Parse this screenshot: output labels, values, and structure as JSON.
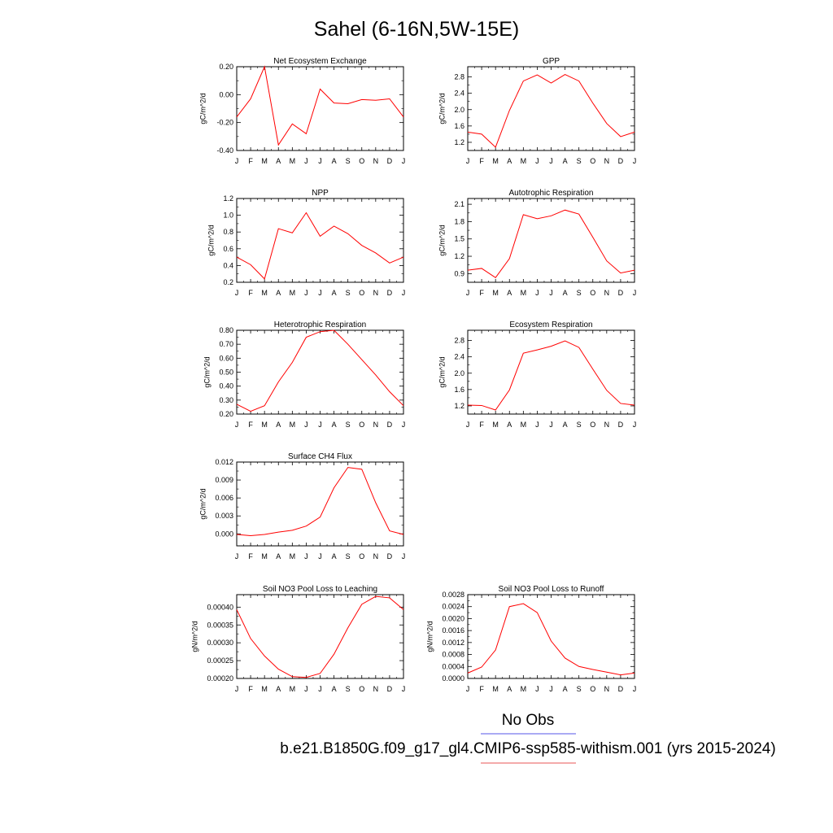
{
  "figure": {
    "title": "Sahel (6-16N,5W-15E)",
    "legend": {
      "entries": [
        {
          "label": "No Obs",
          "color": "#7777ee"
        },
        {
          "label": "b.e21.B1850G.f09_g17_gl4.CMIP6-ssp585-withism.001 (yrs 2015-2024)",
          "color": "#ee7777"
        }
      ]
    },
    "line_color": "#ff0000"
  },
  "chart_data": [
    {
      "type": "line",
      "title": "Net Ecosystem Exchange",
      "ylabel": "gC/m^2/d",
      "categories": [
        "J",
        "F",
        "M",
        "A",
        "M",
        "J",
        "J",
        "A",
        "S",
        "O",
        "N",
        "D",
        "J"
      ],
      "ylim": [
        -0.4,
        0.2
      ],
      "yticks": [
        -0.4,
        -0.2,
        0.0,
        0.2
      ],
      "ytick_labels": [
        "-0.40",
        "-0.20",
        "0.00",
        "0.20"
      ],
      "values": [
        -0.16,
        -0.03,
        0.2,
        -0.36,
        -0.21,
        -0.28,
        0.04,
        -0.06,
        -0.065,
        -0.035,
        -0.04,
        -0.03,
        -0.16
      ]
    },
    {
      "type": "line",
      "title": "GPP",
      "ylabel": "gC/m^2/d",
      "categories": [
        "J",
        "F",
        "M",
        "A",
        "M",
        "J",
        "J",
        "A",
        "S",
        "O",
        "N",
        "D",
        "J"
      ],
      "ylim": [
        1.0,
        3.05
      ],
      "yticks": [
        1.2,
        1.6,
        2.0,
        2.4,
        2.8
      ],
      "ytick_labels": [
        "1.2",
        "1.6",
        "2.0",
        "2.4",
        "2.8"
      ],
      "values": [
        1.45,
        1.4,
        1.08,
        1.98,
        2.7,
        2.85,
        2.65,
        2.86,
        2.7,
        2.16,
        1.66,
        1.34,
        1.45
      ]
    },
    {
      "type": "line",
      "title": "NPP",
      "ylabel": "gC/m^2/d",
      "categories": [
        "J",
        "F",
        "M",
        "A",
        "M",
        "J",
        "J",
        "A",
        "S",
        "O",
        "N",
        "D",
        "J"
      ],
      "ylim": [
        0.2,
        1.2
      ],
      "yticks": [
        0.2,
        0.4,
        0.6,
        0.8,
        1.0,
        1.2
      ],
      "ytick_labels": [
        "0.2",
        "0.4",
        "0.6",
        "0.8",
        "1.0",
        "1.2"
      ],
      "values": [
        0.5,
        0.41,
        0.24,
        0.84,
        0.79,
        1.03,
        0.75,
        0.87,
        0.78,
        0.64,
        0.55,
        0.43,
        0.5
      ]
    },
    {
      "type": "line",
      "title": "Autotrophic Respiration",
      "ylabel": "gC/m^2/d",
      "categories": [
        "J",
        "F",
        "M",
        "A",
        "M",
        "J",
        "J",
        "A",
        "S",
        "O",
        "N",
        "D",
        "J"
      ],
      "ylim": [
        0.75,
        2.2
      ],
      "yticks": [
        0.9,
        1.2,
        1.5,
        1.8,
        2.1
      ],
      "ytick_labels": [
        "0.9",
        "1.2",
        "1.5",
        "1.8",
        "2.1"
      ],
      "values": [
        0.96,
        0.99,
        0.83,
        1.16,
        1.92,
        1.85,
        1.9,
        2.0,
        1.93,
        1.53,
        1.12,
        0.91,
        0.96
      ]
    },
    {
      "type": "line",
      "title": "Heterotrophic Respiration",
      "ylabel": "gC/m^2/d",
      "categories": [
        "J",
        "F",
        "M",
        "A",
        "M",
        "J",
        "J",
        "A",
        "S",
        "O",
        "N",
        "D",
        "J"
      ],
      "ylim": [
        0.2,
        0.8
      ],
      "yticks": [
        0.2,
        0.3,
        0.4,
        0.5,
        0.6,
        0.7,
        0.8
      ],
      "ytick_labels": [
        "0.20",
        "0.30",
        "0.40",
        "0.50",
        "0.60",
        "0.70",
        "0.80"
      ],
      "values": [
        0.27,
        0.22,
        0.26,
        0.43,
        0.57,
        0.75,
        0.79,
        0.8,
        0.7,
        0.59,
        0.48,
        0.36,
        0.26
      ]
    },
    {
      "type": "line",
      "title": "Ecosystem Respiration",
      "ylabel": "gC/m^2/d",
      "categories": [
        "J",
        "F",
        "M",
        "A",
        "M",
        "J",
        "J",
        "A",
        "S",
        "O",
        "N",
        "D",
        "J"
      ],
      "ylim": [
        1.0,
        3.05
      ],
      "yticks": [
        1.2,
        1.6,
        2.0,
        2.4,
        2.8
      ],
      "ytick_labels": [
        "1.2",
        "1.6",
        "2.0",
        "2.4",
        "2.8"
      ],
      "values": [
        1.22,
        1.21,
        1.1,
        1.59,
        2.49,
        2.57,
        2.66,
        2.79,
        2.63,
        2.1,
        1.58,
        1.26,
        1.22
      ]
    },
    {
      "type": "line",
      "title": "Surface CH4 Flux",
      "ylabel": "gC/m^2/d",
      "categories": [
        "J",
        "F",
        "M",
        "A",
        "M",
        "J",
        "J",
        "A",
        "S",
        "O",
        "N",
        "D",
        "J"
      ],
      "ylim": [
        -0.002,
        0.012
      ],
      "yticks": [
        0.0,
        0.003,
        0.006,
        0.009,
        0.012
      ],
      "ytick_labels": [
        "0.000",
        "0.003",
        "0.006",
        "0.009",
        "0.012"
      ],
      "values": [
        -0.0001,
        -0.0003,
        -0.0001,
        0.0003,
        0.0006,
        0.0013,
        0.0028,
        0.0077,
        0.0111,
        0.0108,
        0.0052,
        0.0005,
        -0.0001
      ]
    },
    {
      "type": "line",
      "title": "Soil NO3 Pool Loss to Leaching",
      "ylabel": "gN/m^2/d",
      "categories": [
        "J",
        "F",
        "M",
        "A",
        "M",
        "J",
        "J",
        "A",
        "S",
        "O",
        "N",
        "D",
        "J"
      ],
      "ylim": [
        0.0002,
        0.000435
      ],
      "yticks": [
        0.0002,
        0.00025,
        0.0003,
        0.00035,
        0.0004
      ],
      "ytick_labels": [
        "0.00020",
        "0.00025",
        "0.00030",
        "0.00035",
        "0.00040"
      ],
      "values": [
        0.000393,
        0.000312,
        0.000263,
        0.000226,
        0.000205,
        0.000203,
        0.000214,
        0.000268,
        0.000342,
        0.000408,
        0.00043,
        0.000426,
        0.000393
      ]
    },
    {
      "type": "line",
      "title": "Soil NO3 Pool Loss to Runoff",
      "ylabel": "gN/m^2/d",
      "categories": [
        "J",
        "F",
        "M",
        "A",
        "M",
        "J",
        "J",
        "A",
        "S",
        "O",
        "N",
        "D",
        "J"
      ],
      "ylim": [
        0.0,
        0.0028
      ],
      "yticks": [
        0.0,
        0.0004,
        0.0008,
        0.0012,
        0.0016,
        0.002,
        0.0024,
        0.0028
      ],
      "ytick_labels": [
        "0.0000",
        "0.0004",
        "0.0008",
        "0.0012",
        "0.0016",
        "0.0020",
        "0.0024",
        "0.0028"
      ],
      "values": [
        0.00018,
        0.00038,
        0.00095,
        0.0024,
        0.0025,
        0.0022,
        0.00125,
        0.00068,
        0.0004,
        0.0003,
        0.00021,
        0.00012,
        0.00018
      ]
    }
  ]
}
